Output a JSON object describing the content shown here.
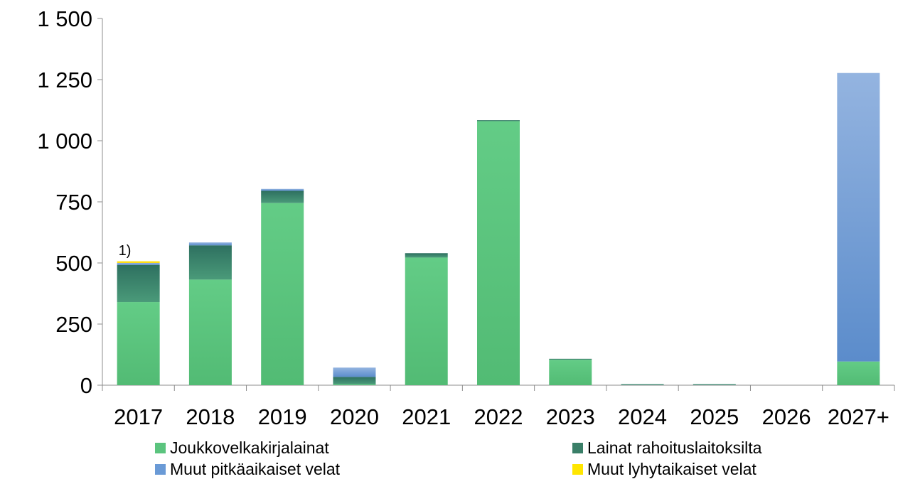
{
  "chart_data": {
    "type": "bar",
    "stacked": true,
    "categories": [
      "2017",
      "2018",
      "2019",
      "2020",
      "2021",
      "2022",
      "2023",
      "2024",
      "2025",
      "2026",
      "2027+"
    ],
    "y_ticks": [
      "0",
      "250",
      "500",
      "750",
      "1 000",
      "1 250",
      "1 500"
    ],
    "ylim": [
      0,
      1500
    ],
    "series": [
      {
        "name": "Joukkovelkakirjalainat",
        "color": "#5bc47e",
        "values": [
          340,
          432,
          745,
          4,
          522,
          1080,
          104,
          0,
          0,
          0,
          97
        ]
      },
      {
        "name": "Lainat rahoituslaitoksilta",
        "color": "#3a7f68",
        "values": [
          152,
          140,
          50,
          30,
          18,
          4,
          4,
          4,
          4,
          0,
          0
        ]
      },
      {
        "name": "Muut pitkäaikaiset velat",
        "color": "#6a9ad6",
        "values": [
          8,
          12,
          8,
          38,
          0,
          0,
          0,
          0,
          0,
          0,
          1180
        ]
      },
      {
        "name": "Muut lyhytaikaiset velat",
        "color": "#ffe600",
        "values": [
          8,
          0,
          0,
          0,
          0,
          0,
          0,
          0,
          0,
          0,
          0
        ]
      }
    ],
    "annotations": [
      {
        "text": "1)",
        "category": "2017"
      }
    ],
    "legend_position": "bottom",
    "grid": false
  }
}
